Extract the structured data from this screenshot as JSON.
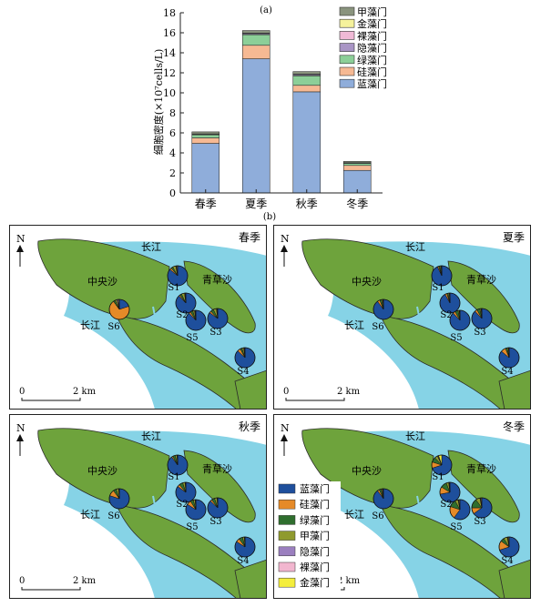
{
  "chart_data": [
    {
      "type": "bar",
      "stacked": true,
      "panel_label": "(a)",
      "ylabel": "细胞密度(×10⁷cells/L)",
      "xlabel": "",
      "ylim": [
        0,
        18
      ],
      "yticks": [
        0,
        2,
        4,
        6,
        8,
        10,
        12,
        14,
        16,
        18
      ],
      "categories": [
        "春季",
        "夏季",
        "秋季",
        "冬季"
      ],
      "legend_position": "top-right",
      "series": [
        {
          "name": "蓝藻门",
          "color": "#8fadda",
          "values": [
            4.95,
            13.4,
            10.1,
            2.25
          ]
        },
        {
          "name": "硅藻门",
          "color": "#f6b993",
          "values": [
            0.55,
            1.35,
            0.65,
            0.5
          ]
        },
        {
          "name": "绿藻门",
          "color": "#8ccf98",
          "values": [
            0.3,
            1.05,
            0.95,
            0.2
          ]
        },
        {
          "name": "隐藻门",
          "color": "#a995c5",
          "values": [
            0.05,
            0.1,
            0.1,
            0.03
          ]
        },
        {
          "name": "裸藻门",
          "color": "#f0b9d6",
          "values": [
            0.02,
            0.02,
            0.02,
            0.02
          ]
        },
        {
          "name": "金藻门",
          "color": "#f5f29c",
          "values": [
            0.03,
            0.05,
            0.05,
            0.02
          ]
        },
        {
          "name": "甲藻门",
          "color": "#8a947e",
          "values": [
            0.2,
            0.25,
            0.25,
            0.13
          ]
        }
      ]
    },
    {
      "type": "map-pie",
      "panel_label": "(b)",
      "pie_legend": [
        {
          "name": "蓝藻门",
          "color": "#1e4f9c"
        },
        {
          "name": "硅藻门",
          "color": "#e58a28"
        },
        {
          "name": "绿藻门",
          "color": "#2f6e2e"
        },
        {
          "name": "甲藻门",
          "color": "#8f9a2e"
        },
        {
          "name": "隐藻门",
          "color": "#9b7fbf"
        },
        {
          "name": "裸藻门",
          "color": "#f2b6cf"
        },
        {
          "name": "金藻门",
          "color": "#f4ee3c"
        }
      ],
      "map_labels": {
        "north": "N",
        "river": "长江",
        "island1": "中央沙",
        "island2": "青草沙",
        "scale0": "0",
        "scale2": "2 km"
      },
      "panels": [
        {
          "season": "春季",
          "sites": {
            "S1": [
              0.86,
              0.03,
              0.03,
              0.05,
              0.01,
              0.01,
              0.01
            ],
            "S2": [
              0.88,
              0.02,
              0.03,
              0.05,
              0.01,
              0.005,
              0.005
            ],
            "S3": [
              0.85,
              0.03,
              0.05,
              0.05,
              0.01,
              0.005,
              0.005
            ],
            "S4": [
              0.87,
              0.05,
              0.03,
              0.03,
              0.01,
              0.005,
              0.005
            ],
            "S5": [
              0.88,
              0.03,
              0.04,
              0.03,
              0.01,
              0.005,
              0.005
            ],
            "S6": [
              0.2,
              0.7,
              0.03,
              0.03,
              0.02,
              0.01,
              0.01
            ]
          }
        },
        {
          "season": "夏季",
          "sites": {
            "S1": [
              0.93,
              0.02,
              0.02,
              0.02,
              0.005,
              0.003,
              0.002
            ],
            "S2": [
              0.92,
              0.03,
              0.02,
              0.02,
              0.005,
              0.003,
              0.002
            ],
            "S3": [
              0.88,
              0.04,
              0.05,
              0.02,
              0.005,
              0.003,
              0.002
            ],
            "S4": [
              0.86,
              0.08,
              0.03,
              0.02,
              0.005,
              0.003,
              0.002
            ],
            "S5": [
              0.88,
              0.04,
              0.05,
              0.02,
              0.005,
              0.003,
              0.002
            ],
            "S6": [
              0.9,
              0.04,
              0.03,
              0.02,
              0.005,
              0.003,
              0.002
            ]
          }
        },
        {
          "season": "秋季",
          "sites": {
            "S1": [
              0.9,
              0.02,
              0.04,
              0.03,
              0.005,
              0.003,
              0.002
            ],
            "S2": [
              0.85,
              0.04,
              0.06,
              0.04,
              0.005,
              0.003,
              0.002
            ],
            "S3": [
              0.87,
              0.03,
              0.05,
              0.04,
              0.005,
              0.003,
              0.002
            ],
            "S4": [
              0.84,
              0.06,
              0.06,
              0.03,
              0.005,
              0.003,
              0.002
            ],
            "S5": [
              0.84,
              0.07,
              0.05,
              0.03,
              0.005,
              0.003,
              0.002
            ],
            "S6": [
              0.8,
              0.1,
              0.05,
              0.04,
              0.005,
              0.003,
              0.002
            ]
          }
        },
        {
          "season": "冬季",
          "sites": {
            "S1": [
              0.7,
              0.1,
              0.08,
              0.05,
              0.01,
              0.01,
              0.05
            ],
            "S2": [
              0.72,
              0.12,
              0.1,
              0.04,
              0.01,
              0.005,
              0.005
            ],
            "S3": [
              0.65,
              0.1,
              0.15,
              0.07,
              0.01,
              0.01,
              0.01
            ],
            "S4": [
              0.7,
              0.15,
              0.06,
              0.06,
              0.01,
              0.01,
              0.01
            ],
            "S5": [
              0.6,
              0.2,
              0.12,
              0.05,
              0.01,
              0.01,
              0.01
            ],
            "S6": [
              0.9,
              0.03,
              0.03,
              0.02,
              0.01,
              0.005,
              0.005
            ]
          }
        }
      ]
    }
  ]
}
